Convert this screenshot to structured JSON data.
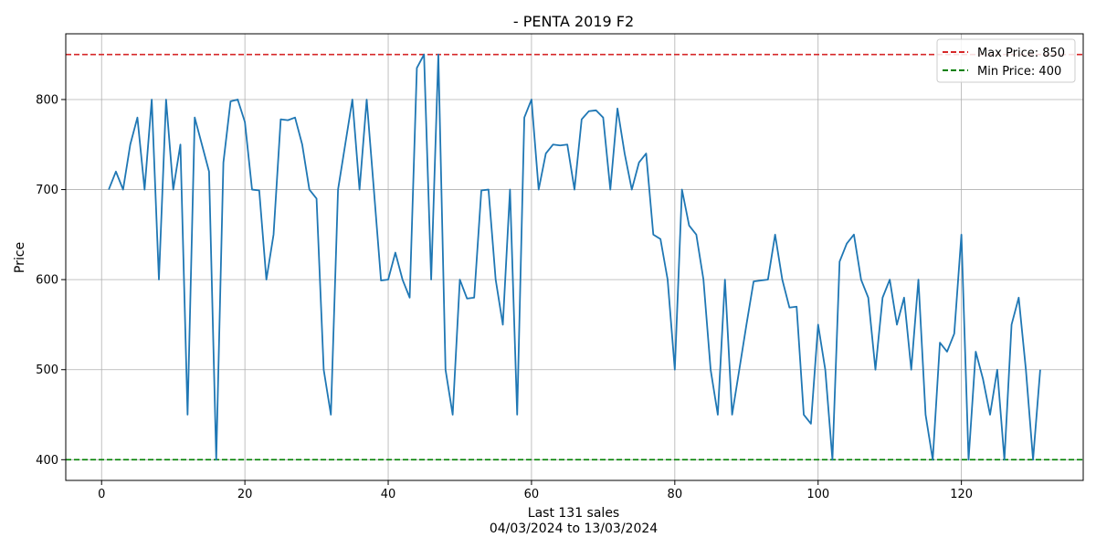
{
  "chart_data": {
    "type": "line",
    "title": "- PENTA 2019 F2",
    "xlabel": "Last 131 sales",
    "xlabel_sub": "04/03/2024 to 13/03/2024",
    "ylabel": "Price",
    "xlim": [
      -5,
      137
    ],
    "ylim": [
      377,
      873
    ],
    "xticks": [
      0,
      20,
      40,
      60,
      80,
      100,
      120
    ],
    "yticks": [
      400,
      500,
      600,
      700,
      800
    ],
    "grid": true,
    "legend_position": "top-right",
    "colors": {
      "line": "#1f77b4",
      "max": "#d62728",
      "min": "#008000",
      "grid": "#b0b0b0"
    },
    "reference_lines": [
      {
        "name": "Max Price: 850",
        "value": 850,
        "style": "dashed",
        "color": "#d62728"
      },
      {
        "name": "Min Price: 400",
        "value": 400,
        "style": "dashed",
        "color": "#008000"
      }
    ],
    "series": [
      {
        "x": [
          1,
          2,
          3,
          4,
          5,
          6,
          7,
          8,
          9,
          10,
          11,
          12,
          13,
          14,
          15,
          16,
          17,
          18,
          19,
          20,
          21,
          22,
          23,
          24,
          25,
          26,
          27,
          28,
          29,
          30,
          31,
          32,
          33,
          34,
          35,
          36,
          37,
          38,
          39,
          40,
          41,
          42,
          43,
          44,
          45,
          46,
          47,
          48,
          49,
          50,
          51,
          52,
          53,
          54,
          55,
          56,
          57,
          58,
          59,
          60,
          61,
          62,
          63,
          64,
          65,
          66,
          67,
          68,
          69,
          70,
          71,
          72,
          73,
          74,
          75,
          76,
          77,
          78,
          79,
          80,
          81,
          82,
          83,
          84,
          85,
          86,
          87,
          88,
          89,
          90,
          91,
          92,
          93,
          94,
          95,
          96,
          97,
          98,
          99,
          100,
          101,
          102,
          103,
          104,
          105,
          106,
          107,
          108,
          109,
          110,
          111,
          112,
          113,
          114,
          115,
          116,
          117,
          118,
          119,
          120,
          121,
          122,
          123,
          124,
          125,
          126,
          127,
          128,
          129,
          130,
          131
        ],
        "values": [
          700,
          720,
          700,
          750,
          780,
          700,
          800,
          600,
          800,
          700,
          750,
          450,
          780,
          750,
          720,
          400,
          730,
          798,
          800,
          775,
          700,
          699,
          600,
          650,
          778,
          777,
          780,
          750,
          700,
          690,
          500,
          450,
          700,
          750,
          800,
          700,
          800,
          700,
          599,
          600,
          630,
          600,
          580,
          835,
          850,
          600,
          850,
          500,
          450,
          600,
          579,
          580,
          699,
          700,
          600,
          550,
          700,
          450,
          780,
          800,
          700,
          740,
          750,
          749,
          750,
          700,
          778,
          787,
          788,
          780,
          700,
          790,
          740,
          700,
          730,
          740,
          650,
          645,
          600,
          500,
          700,
          660,
          650,
          600,
          500,
          450,
          600,
          450,
          500,
          550,
          598,
          599,
          600,
          650,
          600,
          569,
          570,
          450,
          440,
          550,
          500,
          400,
          620,
          640,
          650,
          600,
          580,
          500,
          580,
          600,
          550,
          580,
          500,
          600,
          450,
          400,
          530,
          520,
          540,
          650,
          400,
          520,
          490,
          450,
          500,
          400,
          550,
          580,
          500,
          400,
          500
        ]
      }
    ]
  }
}
